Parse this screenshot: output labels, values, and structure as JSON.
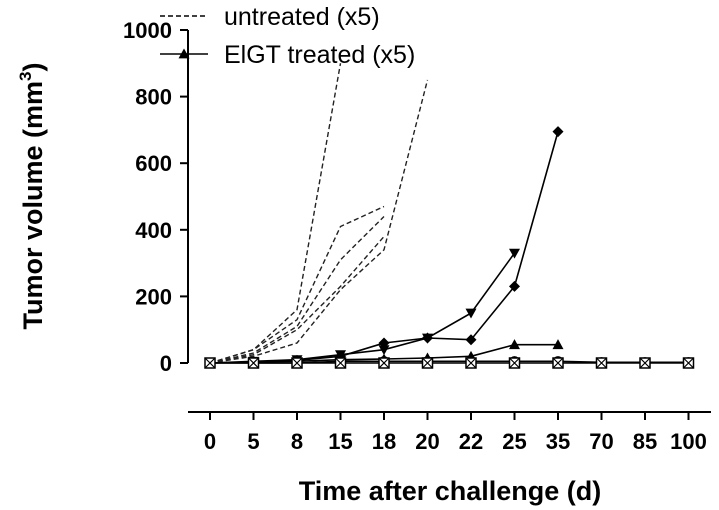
{
  "chart_data": {
    "type": "line",
    "ylabel": "Tumor volume (mm",
    "ylabel_sup": "3",
    "ylabel_close": ")",
    "xlabel": "Time after challenge (d)",
    "categories": [
      "0",
      "5",
      "8",
      "15",
      "18",
      "20",
      "22",
      "25",
      "35",
      "70",
      "85",
      "100"
    ],
    "y_ticks": [
      "0",
      "200",
      "400",
      "600",
      "800",
      "1000"
    ],
    "ylim": [
      0,
      1000
    ],
    "grid": false,
    "legend_position": "top-left",
    "legend": [
      {
        "label": "untreated (x5)",
        "style": "dashed"
      },
      {
        "label": "ElGT treated (x5)",
        "style": "solid-triangle"
      }
    ],
    "series": [
      {
        "group": "untreated",
        "style": "dashed",
        "x": [
          "0",
          "5",
          "8",
          "15"
        ],
        "values": [
          0,
          40,
          160,
          900
        ]
      },
      {
        "group": "untreated",
        "style": "dashed",
        "x": [
          "0",
          "5",
          "8",
          "15",
          "18"
        ],
        "values": [
          0,
          40,
          130,
          410,
          470
        ]
      },
      {
        "group": "untreated",
        "style": "dashed",
        "x": [
          "0",
          "5",
          "8",
          "15",
          "18"
        ],
        "values": [
          0,
          30,
          110,
          310,
          440
        ]
      },
      {
        "group": "untreated",
        "style": "dashed",
        "x": [
          "0",
          "5",
          "8",
          "15",
          "18"
        ],
        "values": [
          0,
          25,
          100,
          230,
          380
        ]
      },
      {
        "group": "untreated",
        "style": "dashed",
        "x": [
          "0",
          "5",
          "8",
          "15",
          "18",
          "20"
        ],
        "values": [
          0,
          20,
          60,
          220,
          340,
          850
        ]
      },
      {
        "group": "treated",
        "style": "solid",
        "marker": "triangle-down",
        "x": [
          "0",
          "5",
          "8",
          "15",
          "18",
          "20",
          "22",
          "25"
        ],
        "values": [
          0,
          5,
          10,
          25,
          40,
          75,
          150,
          330
        ]
      },
      {
        "group": "treated",
        "style": "solid",
        "marker": "diamond",
        "x": [
          "0",
          "5",
          "8",
          "15",
          "18",
          "20",
          "22",
          "25",
          "35"
        ],
        "values": [
          0,
          3,
          8,
          20,
          60,
          75,
          70,
          230,
          695
        ]
      },
      {
        "group": "treated",
        "style": "solid",
        "marker": "triangle-up",
        "x": [
          "0",
          "5",
          "8",
          "15",
          "18",
          "20",
          "22",
          "25",
          "35"
        ],
        "values": [
          0,
          3,
          5,
          10,
          12,
          15,
          20,
          55,
          55
        ]
      },
      {
        "group": "treated",
        "style": "solid",
        "marker": "circle",
        "x": [
          "0",
          "5",
          "8",
          "15",
          "18",
          "20",
          "22",
          "25",
          "35",
          "70",
          "85",
          "100"
        ],
        "values": [
          0,
          0,
          0,
          5,
          5,
          5,
          5,
          5,
          5,
          2,
          2,
          2
        ]
      },
      {
        "group": "treated",
        "style": "solid",
        "marker": "square-x",
        "x": [
          "0",
          "5",
          "8",
          "15",
          "18",
          "20",
          "22",
          "25",
          "35",
          "70",
          "85",
          "100"
        ],
        "values": [
          0,
          0,
          0,
          0,
          0,
          0,
          0,
          0,
          0,
          0,
          0,
          0
        ]
      }
    ],
    "colors": {
      "line": "#000000",
      "dashed": "#222222",
      "background": "#ffffff"
    }
  }
}
